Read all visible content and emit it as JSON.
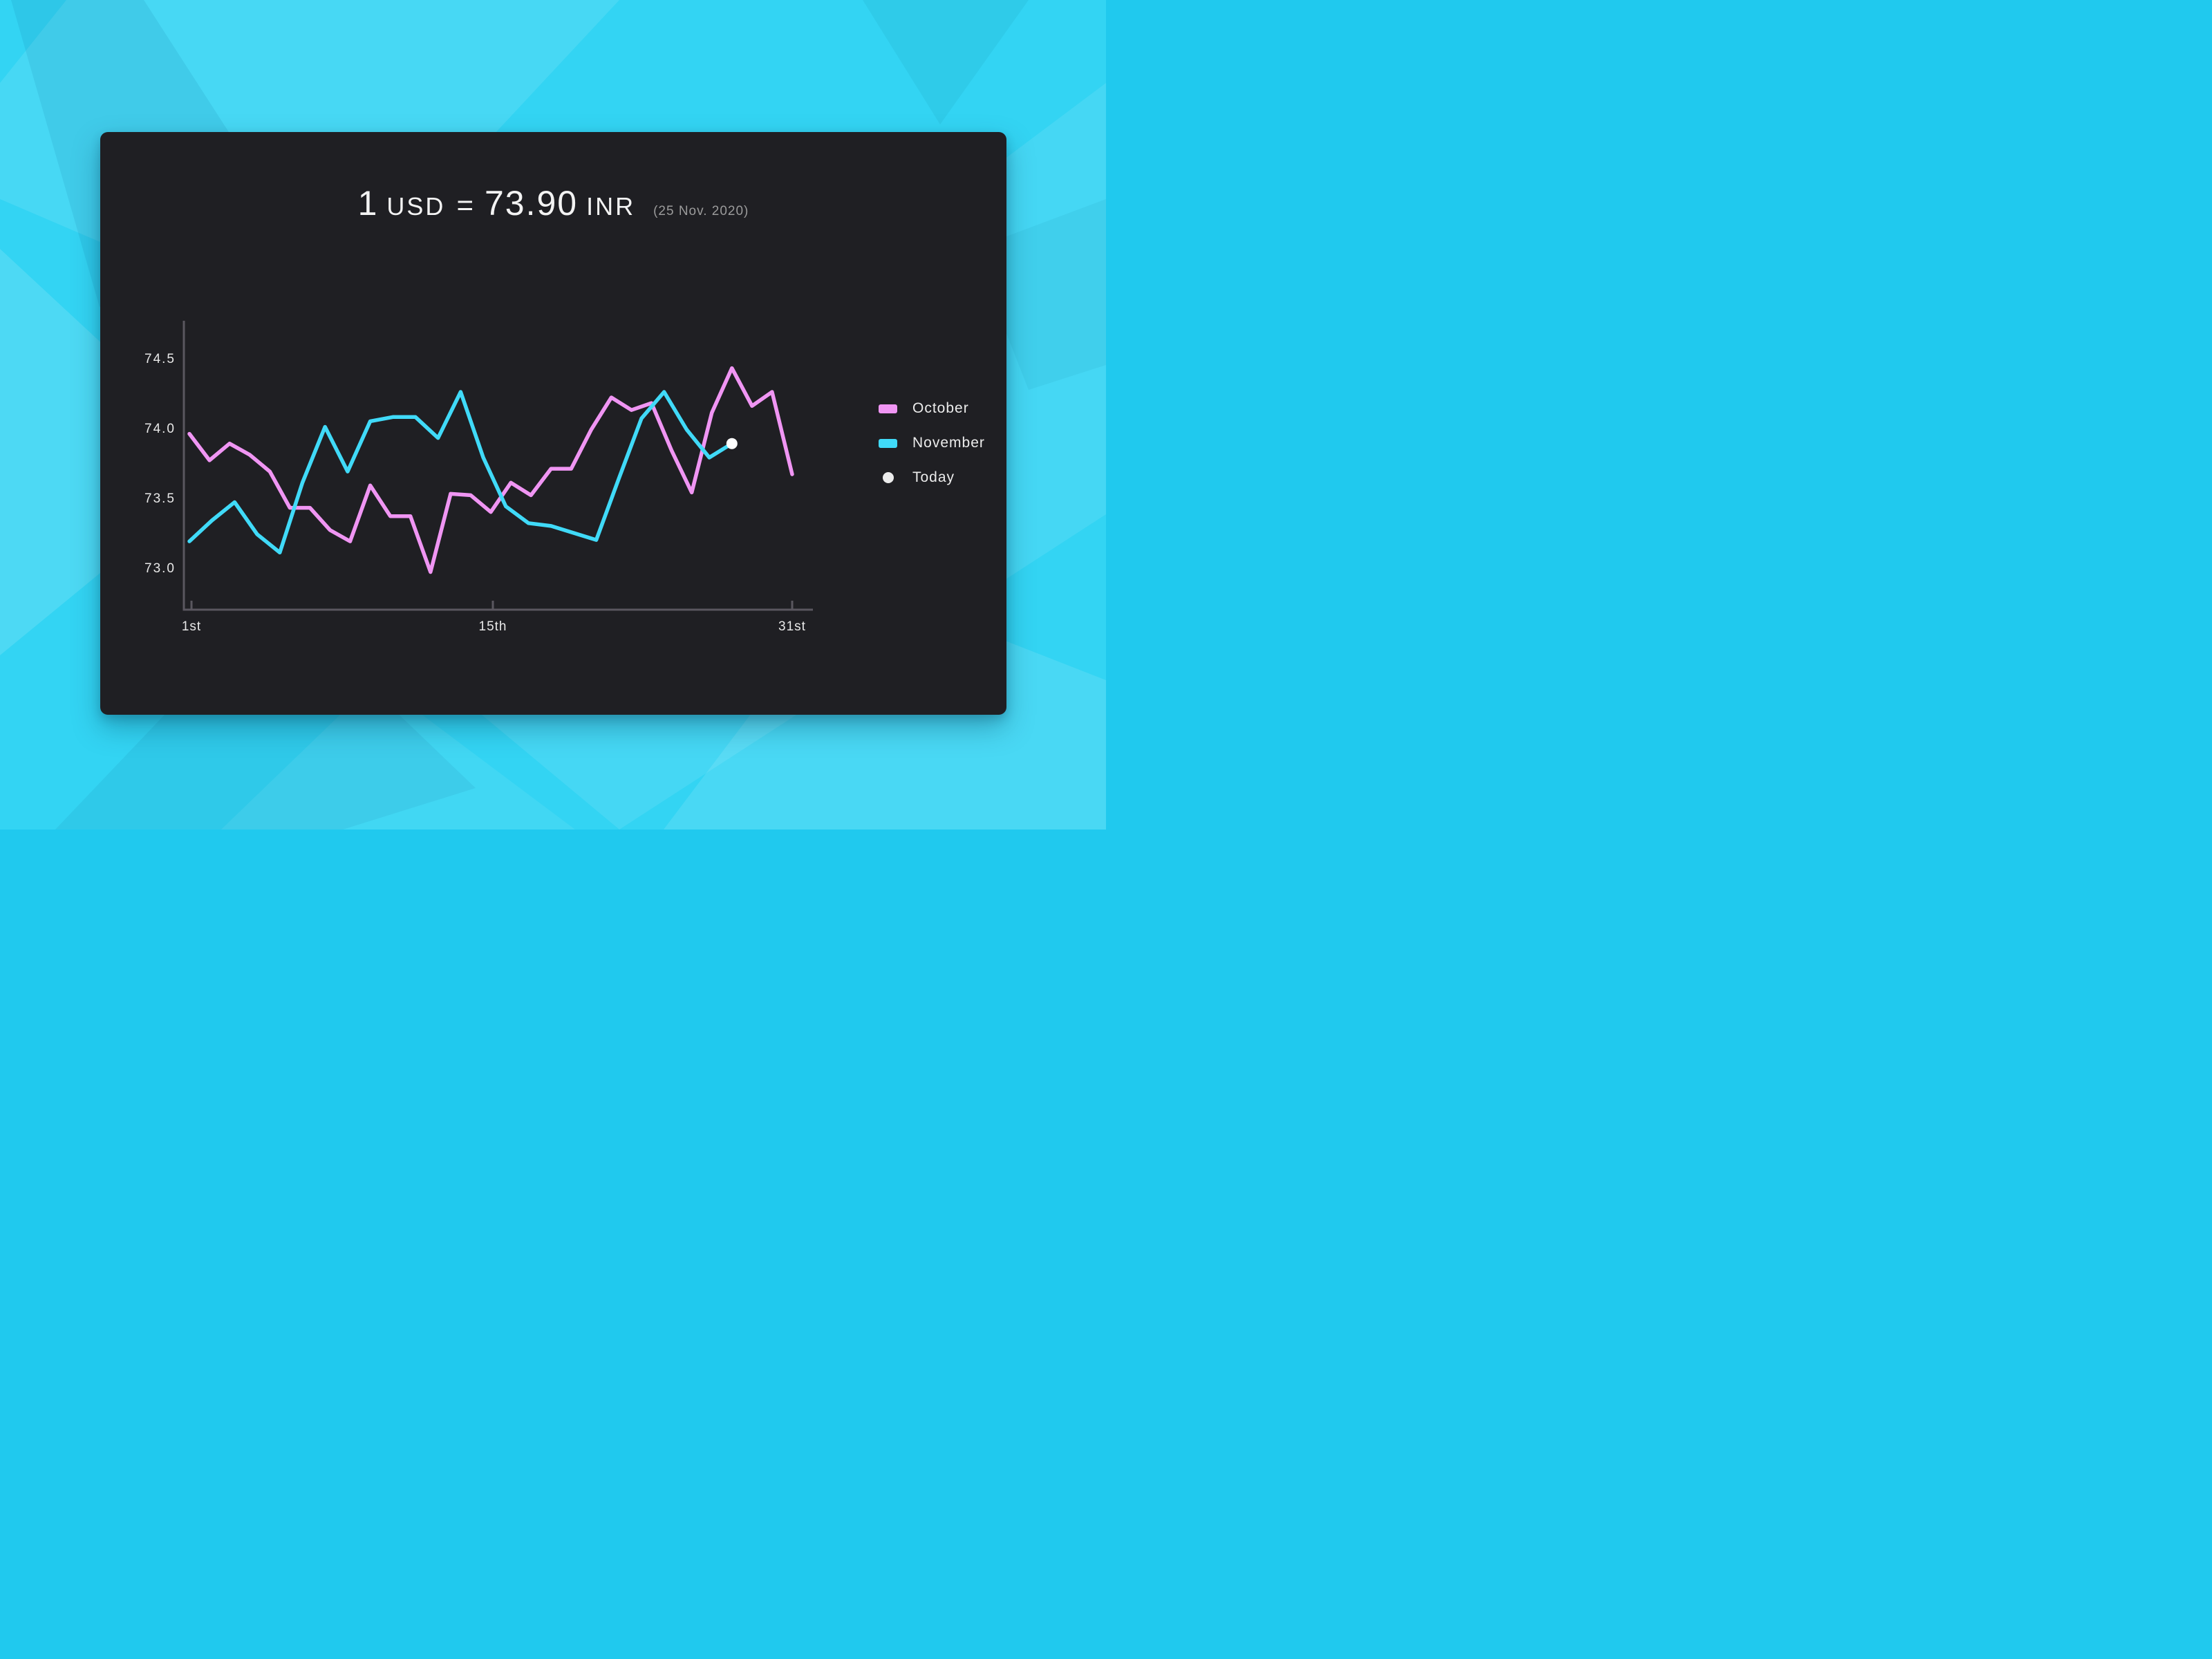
{
  "title": {
    "base_amount": "1",
    "base_currency": "USD",
    "equals": "=",
    "rate": "73.90",
    "quote_currency": "INR",
    "date_note": "(25 Nov. 2020)"
  },
  "chart_data": {
    "type": "line",
    "title": "1 USD = 73.90 INR (25 Nov. 2020)",
    "xlabel": "",
    "ylabel": "",
    "ylim": [
      72.7,
      74.78
    ],
    "grid": "off",
    "legend_position": "right",
    "y_tick_labels": [
      "74.5",
      "74.0",
      "73.5",
      "73.0"
    ],
    "y_tick_values": [
      74.5,
      74.0,
      73.5,
      73.0
    ],
    "x_tick_labels": [
      "1st",
      "15th",
      "31st"
    ],
    "x_axis_days": 31,
    "series": [
      {
        "name": "October",
        "color": "#f095f3",
        "days": 31,
        "x_stretch": 1.0,
        "values": [
          73.97,
          73.78,
          73.9,
          73.82,
          73.7,
          73.44,
          73.44,
          73.28,
          73.2,
          73.6,
          73.38,
          73.38,
          72.98,
          73.54,
          73.53,
          73.41,
          73.62,
          73.53,
          73.72,
          73.72,
          74.0,
          74.23,
          74.14,
          74.19,
          73.85,
          73.55,
          74.12,
          74.44,
          74.17,
          74.27,
          73.68
        ]
      },
      {
        "name": "November",
        "color": "#40daf8",
        "days": 25,
        "x_stretch": 1.125,
        "values": [
          73.2,
          73.35,
          73.48,
          73.25,
          73.12,
          73.62,
          74.02,
          73.7,
          74.06,
          74.09,
          74.09,
          73.94,
          74.27,
          73.8,
          73.45,
          73.33,
          73.31,
          73.26,
          73.21,
          73.65,
          74.08,
          74.27,
          74.0,
          73.8,
          73.9
        ]
      }
    ],
    "today_marker": {
      "series": "November",
      "day": 25,
      "value": 73.9,
      "color": "#ffffff"
    }
  },
  "legend": {
    "items": [
      {
        "label": "October",
        "swatch": "line-swatch",
        "color": "#f095f3"
      },
      {
        "label": "November",
        "swatch": "line-swatch",
        "color": "#40daf8"
      },
      {
        "label": "Today",
        "swatch": "dot-swatch",
        "color": "#ececec"
      }
    ]
  },
  "colors": {
    "background": "#33d4f3",
    "card": "#1f1f23",
    "axis": "#5a575f",
    "tick_label": "#e9e9e9",
    "title_text": "#f3f3f3",
    "date_note_text": "#9b9b9b",
    "october_line": "#f095f3",
    "november_line": "#40daf8",
    "today_dot": "#ffffff"
  }
}
